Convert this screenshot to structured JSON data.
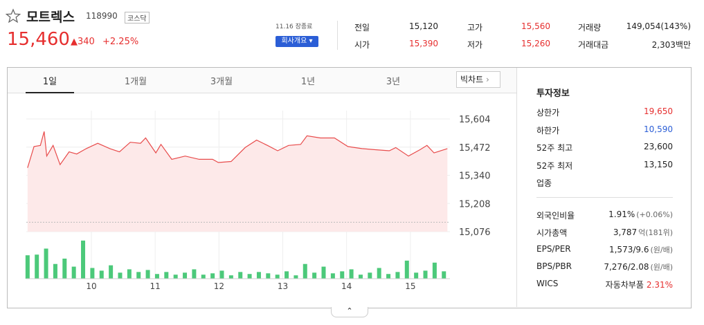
{
  "header": {
    "name": "모트렉스",
    "code": "118990",
    "market": "코스닥",
    "price": "15,460",
    "change": "340",
    "change_pct": "+2.25%",
    "time": "11.16 장종료",
    "company_button": "회사개요"
  },
  "quote": [
    {
      "label": "전일",
      "value": "15,120"
    },
    {
      "label": "고가",
      "value": "15,560"
    },
    {
      "label": "거래량",
      "value": "149,054(143%)"
    },
    {
      "label": "시가",
      "value": "15,390"
    },
    {
      "label": "저가",
      "value": "15,260"
    },
    {
      "label": "거래대금",
      "value": "2,303백만"
    }
  ],
  "tabs": [
    "1일",
    "1개월",
    "3개월",
    "1년",
    "3년"
  ],
  "big_chart": "빅차트",
  "info": {
    "title": "투자정보",
    "rows1": [
      {
        "label": "상한가",
        "value": "19,650",
        "color": "#e62e2e"
      },
      {
        "label": "하한가",
        "value": "10,590",
        "color": "#2b5ed6"
      },
      {
        "label": "52주 최고",
        "value": "23,600",
        "color": "#222222"
      },
      {
        "label": "52주 최저",
        "value": "13,150",
        "color": "#222222"
      },
      {
        "label": "업종",
        "value": "",
        "color": "#222222"
      }
    ],
    "rows2": [
      {
        "label": "외국인비율",
        "value": "1.91%",
        "extra": "(+0.06%)"
      },
      {
        "label": "시가총액",
        "value": "3,787",
        "extra": "억(181위)"
      },
      {
        "label": "EPS/PER",
        "value": "1,573/9.6",
        "extra": "(원/배)"
      },
      {
        "label": "BPS/PBR",
        "value": "7,276/2.08",
        "extra": "(원/배)"
      },
      {
        "label": "WICS",
        "value": "자동차부품",
        "extra": "2.31%"
      }
    ]
  },
  "chart_data": [
    {
      "type": "line",
      "color": "#e84b4b",
      "fill": "#fde9e9",
      "x": [
        9.0,
        9.1,
        9.2,
        9.26,
        9.3,
        9.4,
        9.51,
        9.65,
        9.77,
        9.92,
        10.1,
        10.29,
        10.44,
        10.61,
        10.77,
        10.85,
        11.01,
        11.09,
        11.26,
        11.47,
        11.69,
        11.9,
        11.99,
        12.19,
        12.41,
        12.59,
        12.76,
        12.92,
        13.09,
        13.28,
        13.38,
        13.59,
        13.81,
        14.02,
        14.24,
        14.45,
        14.67,
        14.77,
        14.97,
        15.15,
        15.26,
        15.37,
        15.58
      ],
      "values": [
        15375,
        15475,
        15480,
        15545,
        15430,
        15480,
        15390,
        15450,
        15440,
        15465,
        15490,
        15465,
        15450,
        15495,
        15490,
        15515,
        15445,
        15485,
        15415,
        15430,
        15415,
        15415,
        15400,
        15405,
        15470,
        15505,
        15480,
        15455,
        15480,
        15485,
        15525,
        15515,
        15515,
        15475,
        15465,
        15460,
        15455,
        15470,
        15430,
        15460,
        15480,
        15445,
        15465
      ],
      "ylim": [
        15076,
        15643
      ],
      "yticks": [
        {
          "value": 15604,
          "label": "15,604"
        },
        {
          "value": 15472,
          "label": "15,472"
        },
        {
          "value": 15340,
          "label": "15,340"
        },
        {
          "value": 15208,
          "label": "15,208"
        },
        {
          "value": 15076,
          "label": "15,076"
        }
      ],
      "xlim": [
        8.98,
        15.62
      ],
      "xticks": [
        10,
        11,
        12,
        13,
        14,
        15
      ],
      "reference_line": 15120,
      "grid": true
    },
    {
      "type": "bar",
      "color": "#4cc97a",
      "x": [
        9.0,
        9.145,
        9.29,
        9.435,
        9.58,
        9.725,
        9.87,
        10.015,
        10.16,
        10.305,
        10.45,
        10.595,
        10.74,
        10.885,
        11.03,
        11.175,
        11.32,
        11.465,
        11.61,
        11.755,
        11.9,
        12.045,
        12.19,
        12.335,
        12.48,
        12.625,
        12.77,
        12.915,
        13.06,
        13.205,
        13.35,
        13.495,
        13.64,
        13.785,
        13.93,
        14.075,
        14.22,
        14.365,
        14.51,
        14.655,
        14.8,
        14.945,
        15.09,
        15.235,
        15.38,
        15.525
      ],
      "values": [
        35,
        36,
        45,
        22,
        30,
        18,
        57,
        16,
        12,
        20,
        9,
        14,
        10,
        13,
        7,
        10,
        6,
        9,
        14,
        6,
        8,
        12,
        5,
        10,
        7,
        10,
        8,
        6,
        11,
        5,
        22,
        9,
        18,
        8,
        11,
        14,
        6,
        9,
        16,
        7,
        10,
        27,
        9,
        12,
        24,
        11
      ],
      "ylim": [
        0,
        60
      ]
    }
  ]
}
